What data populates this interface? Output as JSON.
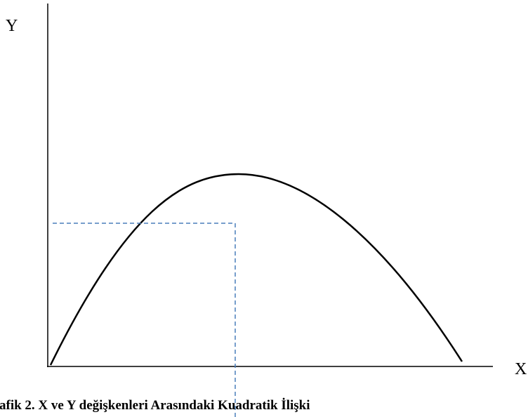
{
  "axes": {
    "y_label": "Y",
    "x_label": "X"
  },
  "caption": "afik 2. X ve Y değişkenleri Arasındaki Kuadratik İlişki"
}
